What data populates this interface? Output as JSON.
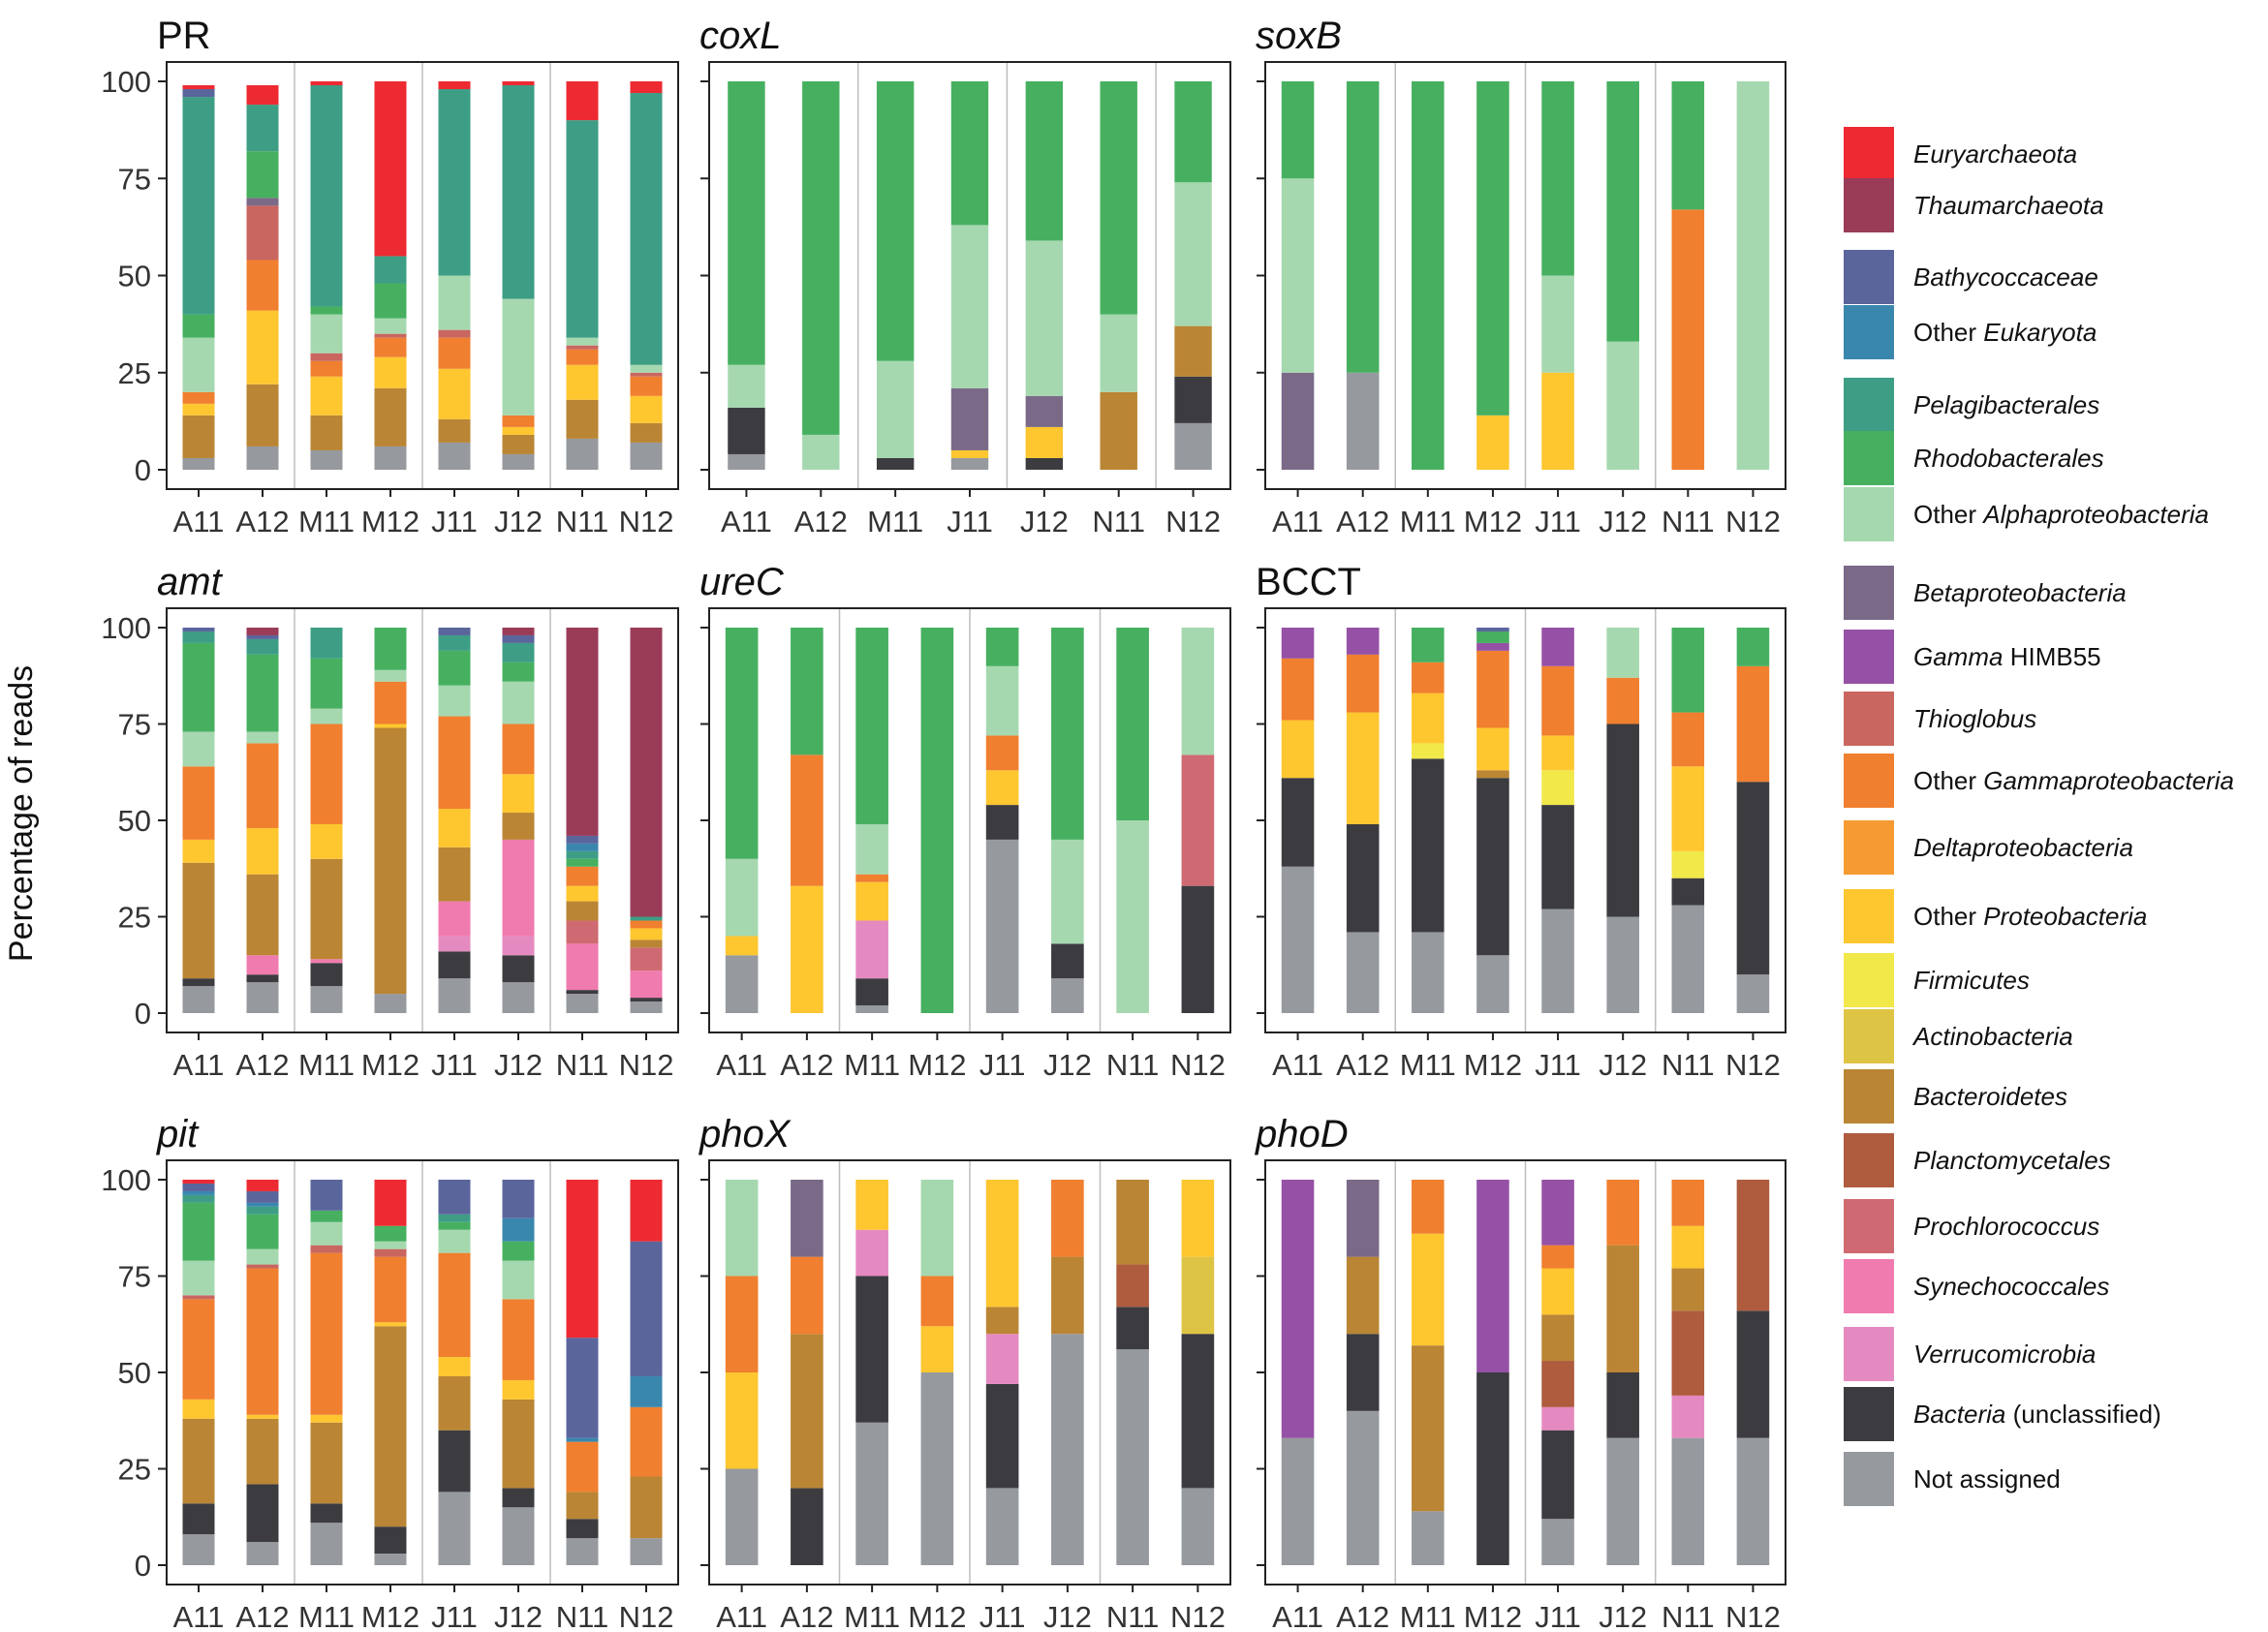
{
  "figure": {
    "ylabel": "Percentage of reads"
  },
  "legend": [
    {
      "key": "eury",
      "label": "Euryarchaeota",
      "italic": true,
      "color": "#ED2A32"
    },
    {
      "key": "thaum",
      "label": "Thaumarchaeota",
      "italic": true,
      "color": "#9A3B58"
    },
    {
      "key": "bathy",
      "label": "Bathycoccaceae",
      "italic": true,
      "color": "#5A659C"
    },
    {
      "key": "oeuk",
      "prefix": "Other ",
      "label": "Eukaryota",
      "italic": true,
      "color": "#3A87AE"
    },
    {
      "key": "pelag",
      "label": "Pelagibacterales",
      "italic": true,
      "color": "#3E9E85"
    },
    {
      "key": "rhodo",
      "label": "Rhodobacterales",
      "italic": true,
      "color": "#46B060"
    },
    {
      "key": "oalpha",
      "prefix": "Other ",
      "label": "Alphaproteobacteria",
      "italic": true,
      "color": "#A6D8B0"
    },
    {
      "key": "beta",
      "label": "Betaproteobacteria",
      "italic": true,
      "color": "#7A6A88"
    },
    {
      "key": "gamma",
      "label": "Gamma",
      "suffix": " HIMB55",
      "italic": true,
      "color": "#9551A5"
    },
    {
      "key": "thio",
      "label": "Thioglobus",
      "italic": true,
      "color": "#C8665F"
    },
    {
      "key": "ogamma",
      "prefix": "Other ",
      "label": "Gammaproteobacteria",
      "italic": true,
      "color": "#F07F2F"
    },
    {
      "key": "delta",
      "label": "Deltaproteobacteria",
      "italic": true,
      "color": "#F69A32"
    },
    {
      "key": "oproteo",
      "prefix": "Other ",
      "label": "Proteobacteria",
      "italic": true,
      "color": "#FEC62F"
    },
    {
      "key": "firm",
      "label": "Firmicutes",
      "italic": true,
      "color": "#F1E84A"
    },
    {
      "key": "actino",
      "label": "Actinobacteria",
      "italic": true,
      "color": "#DEC444"
    },
    {
      "key": "bacter",
      "label": "Bacteroidetes",
      "italic": true,
      "color": "#BA8534"
    },
    {
      "key": "planc",
      "label": "Planctomycetales",
      "italic": true,
      "color": "#AE5B3E"
    },
    {
      "key": "prochl",
      "label": "Prochlorococcus",
      "italic": true,
      "color": "#CF6A72"
    },
    {
      "key": "synech",
      "label": "Synechococcales",
      "italic": true,
      "color": "#F07BAE"
    },
    {
      "key": "verru",
      "label": "Verrucomicrobia",
      "italic": true,
      "color": "#E58AC0"
    },
    {
      "key": "unclass",
      "label": "Bacteria",
      "suffix": " (unclassified)",
      "italic": true,
      "color": "#3C3C40"
    },
    {
      "key": "na",
      "label": "Not assigned",
      "italic": false,
      "color": "#96999E"
    }
  ],
  "chart_data": [
    {
      "type": "bar",
      "stacked": true,
      "title": "PR",
      "title_italic": false,
      "ylim": [
        0,
        100
      ],
      "yticks": [
        0,
        25,
        50,
        75,
        100
      ],
      "categories": [
        "A11",
        "A12",
        "M11",
        "M12",
        "J11",
        "J12",
        "N11",
        "N12"
      ],
      "bars": [
        {
          "na": 3,
          "bacter": 11,
          "oproteo": 3,
          "ogamma": 3,
          "bathy": 2,
          "oalpha": 14,
          "rhodo": 6,
          "pelag": 56,
          "eury": 1
        },
        {
          "na": 6,
          "bacter": 16,
          "oproteo": 19,
          "ogamma": 13,
          "thio": 14,
          "beta": 2,
          "rhodo": 12,
          "pelag": 12,
          "eury": 5
        },
        {
          "na": 5,
          "bacter": 9,
          "oproteo": 10,
          "ogamma": 4,
          "thio": 2,
          "oalpha": 10,
          "rhodo": 2,
          "pelag": 57,
          "eury": 1
        },
        {
          "na": 6,
          "bacter": 15,
          "oproteo": 8,
          "ogamma": 5,
          "thio": 1,
          "oalpha": 4,
          "rhodo": 9,
          "pelag": 7,
          "eury": 45
        },
        {
          "na": 7,
          "bacter": 6,
          "oproteo": 13,
          "ogamma": 8,
          "thio": 2,
          "oalpha": 14,
          "pelag": 48,
          "eury": 2
        },
        {
          "na": 4,
          "bacter": 5,
          "oproteo": 2,
          "ogamma": 3,
          "oalpha": 30,
          "pelag": 55,
          "eury": 1
        },
        {
          "na": 8,
          "bacter": 10,
          "oproteo": 9,
          "ogamma": 4,
          "thio": 1,
          "oalpha": 2,
          "pelag": 56,
          "eury": 10
        },
        {
          "na": 7,
          "bacter": 5,
          "oproteo": 7,
          "ogamma": 5,
          "thio": 1,
          "oalpha": 2,
          "pelag": 70,
          "eury": 3
        }
      ]
    },
    {
      "type": "bar",
      "stacked": true,
      "title": "coxL",
      "title_italic": true,
      "ylim": [
        0,
        100
      ],
      "yticks": [
        0,
        25,
        50,
        75,
        100
      ],
      "categories": [
        "A11",
        "A12",
        "M11",
        "J11",
        "J12",
        "N11",
        "N12"
      ],
      "bars": [
        {
          "na": 4,
          "unclass": 12,
          "oalpha": 11,
          "rhodo": 73
        },
        {
          "oalpha": 9,
          "rhodo": 91
        },
        {
          "unclass": 3,
          "oalpha": 25,
          "rhodo": 72
        },
        {
          "na": 3,
          "oproteo": 2,
          "beta": 16,
          "oalpha": 42,
          "rhodo": 37
        },
        {
          "unclass": 3,
          "oproteo": 8,
          "beta": 8,
          "oalpha": 40,
          "rhodo": 41
        },
        {
          "bacter": 20,
          "oalpha": 20,
          "rhodo": 60
        },
        {
          "na": 12,
          "unclass": 12,
          "bacter": 13,
          "oalpha": 37,
          "rhodo": 26
        }
      ]
    },
    {
      "type": "bar",
      "stacked": true,
      "title": "soxB",
      "title_italic": true,
      "ylim": [
        0,
        100
      ],
      "yticks": [
        0,
        25,
        50,
        75,
        100
      ],
      "categories": [
        "A11",
        "A12",
        "M11",
        "M12",
        "J11",
        "J12",
        "N11",
        "N12"
      ],
      "bars": [
        {
          "beta": 25,
          "oalpha": 50,
          "rhodo": 25
        },
        {
          "na": 25,
          "rhodo": 75
        },
        {
          "rhodo": 100
        },
        {
          "oproteo": 14,
          "rhodo": 86
        },
        {
          "oproteo": 25,
          "oalpha": 25,
          "rhodo": 50
        },
        {
          "oalpha": 33,
          "rhodo": 67
        },
        {
          "ogamma": 67,
          "rhodo": 33
        },
        {
          "oalpha": 100
        }
      ]
    },
    {
      "type": "bar",
      "stacked": true,
      "title": "amt",
      "title_italic": true,
      "ylim": [
        0,
        100
      ],
      "yticks": [
        0,
        25,
        50,
        75,
        100
      ],
      "categories": [
        "A11",
        "A12",
        "M11",
        "M12",
        "J11",
        "J12",
        "N11",
        "N12"
      ],
      "bars": [
        {
          "na": 7,
          "unclass": 2,
          "bacter": 30,
          "oproteo": 6,
          "ogamma": 19,
          "oalpha": 9,
          "rhodo": 23,
          "pelag": 3,
          "bathy": 1
        },
        {
          "na": 8,
          "unclass": 2,
          "synech": 5,
          "bacter": 21,
          "oproteo": 12,
          "ogamma": 22,
          "oalpha": 3,
          "rhodo": 20,
          "pelag": 4,
          "bathy": 1,
          "thaum": 2
        },
        {
          "na": 7,
          "unclass": 6,
          "synech": 1,
          "bacter": 26,
          "oproteo": 9,
          "ogamma": 26,
          "oalpha": 4,
          "rhodo": 13,
          "pelag": 8
        },
        {
          "na": 5,
          "bacter": 69,
          "oproteo": 1,
          "ogamma": 11,
          "oalpha": 3,
          "rhodo": 11
        },
        {
          "na": 9,
          "unclass": 7,
          "verru": 4,
          "synech": 9,
          "bacter": 14,
          "oproteo": 10,
          "ogamma": 24,
          "oalpha": 8,
          "rhodo": 9,
          "pelag": 4,
          "bathy": 2
        },
        {
          "na": 8,
          "unclass": 7,
          "verru": 5,
          "synech": 25,
          "bacter": 7,
          "oproteo": 10,
          "ogamma": 13,
          "oalpha": 11,
          "rhodo": 5,
          "pelag": 5,
          "bathy": 2,
          "thaum": 2
        },
        {
          "na": 5,
          "unclass": 1,
          "synech": 12,
          "prochl": 6,
          "bacter": 5,
          "oproteo": 4,
          "ogamma": 5,
          "rhodo": 2,
          "pelag": 2,
          "oeuk": 2,
          "bathy": 2,
          "thaum": 54
        },
        {
          "na": 3,
          "unclass": 1,
          "synech": 7,
          "prochl": 6,
          "bacter": 2,
          "oproteo": 3,
          "ogamma": 2,
          "pelag": 1,
          "thaum": 75
        }
      ]
    },
    {
      "type": "bar",
      "stacked": true,
      "title": "ureC",
      "title_italic": true,
      "ylim": [
        0,
        100
      ],
      "yticks": [
        0,
        25,
        50,
        75,
        100
      ],
      "categories": [
        "A11",
        "A12",
        "M11",
        "M12",
        "J11",
        "J12",
        "N11",
        "N12"
      ],
      "bars": [
        {
          "na": 15,
          "oproteo": 5,
          "oalpha": 20,
          "rhodo": 60
        },
        {
          "oproteo": 33,
          "ogamma": 34,
          "rhodo": 33
        },
        {
          "na": 2,
          "unclass": 7,
          "verru": 15,
          "oproteo": 10,
          "ogamma": 2,
          "oalpha": 13,
          "rhodo": 51
        },
        {
          "rhodo": 100
        },
        {
          "na": 45,
          "unclass": 9,
          "oproteo": 9,
          "ogamma": 9,
          "oalpha": 18,
          "rhodo": 10
        },
        {
          "na": 9,
          "unclass": 9,
          "oalpha": 27,
          "rhodo": 55
        },
        {
          "oalpha": 50,
          "rhodo": 50
        },
        {
          "unclass": 33,
          "prochl": 34,
          "oalpha": 33
        }
      ]
    },
    {
      "type": "bar",
      "stacked": true,
      "title": "BCCT",
      "title_italic": false,
      "ylim": [
        0,
        100
      ],
      "yticks": [
        0,
        25,
        50,
        75,
        100
      ],
      "categories": [
        "A11",
        "A12",
        "M11",
        "M12",
        "J11",
        "J12",
        "N11",
        "N12"
      ],
      "bars": [
        {
          "na": 38,
          "unclass": 23,
          "oproteo": 15,
          "ogamma": 16,
          "gamma": 8
        },
        {
          "na": 21,
          "unclass": 28,
          "oproteo": 29,
          "ogamma": 15,
          "gamma": 7
        },
        {
          "na": 21,
          "unclass": 45,
          "firm": 4,
          "oproteo": 13,
          "ogamma": 8,
          "rhodo": 9
        },
        {
          "na": 15,
          "unclass": 46,
          "bacter": 2,
          "oproteo": 11,
          "ogamma": 20,
          "rhodo": 3,
          "gamma": 2,
          "bathy": 1
        },
        {
          "na": 27,
          "unclass": 27,
          "firm": 9,
          "oproteo": 9,
          "ogamma": 18,
          "gamma": 10
        },
        {
          "na": 25,
          "unclass": 50,
          "ogamma": 12,
          "oalpha": 13
        },
        {
          "na": 28,
          "unclass": 7,
          "firm": 7,
          "oproteo": 22,
          "ogamma": 14,
          "rhodo": 22
        },
        {
          "na": 10,
          "unclass": 50,
          "ogamma": 30,
          "rhodo": 10
        }
      ]
    },
    {
      "type": "bar",
      "stacked": true,
      "title": "pit",
      "title_italic": true,
      "ylim": [
        0,
        100
      ],
      "yticks": [
        0,
        25,
        50,
        75,
        100
      ],
      "categories": [
        "A11",
        "A12",
        "M11",
        "M12",
        "J11",
        "J12",
        "N11",
        "N12"
      ],
      "bars": [
        {
          "na": 8,
          "unclass": 8,
          "bacter": 22,
          "oproteo": 5,
          "ogamma": 26,
          "thio": 1,
          "oalpha": 9,
          "rhodo": 15,
          "pelag": 2,
          "oeuk": 1,
          "bathy": 2,
          "eury": 1
        },
        {
          "na": 6,
          "unclass": 15,
          "bacter": 17,
          "oproteo": 1,
          "ogamma": 38,
          "thio": 1,
          "oalpha": 4,
          "rhodo": 9,
          "pelag": 2,
          "oeuk": 1,
          "bathy": 3,
          "eury": 3
        },
        {
          "na": 11,
          "unclass": 5,
          "bacter": 21,
          "oproteo": 2,
          "ogamma": 42,
          "thio": 2,
          "oalpha": 6,
          "rhodo": 3,
          "bathy": 8
        },
        {
          "na": 3,
          "unclass": 7,
          "bacter": 52,
          "oproteo": 1,
          "ogamma": 17,
          "oalpha": 2,
          "rhodo": 4,
          "thio": 2,
          "eury": 12
        },
        {
          "na": 19,
          "unclass": 16,
          "bacter": 14,
          "oproteo": 5,
          "ogamma": 27,
          "oalpha": 6,
          "rhodo": 2,
          "pelag": 2,
          "bathy": 9
        },
        {
          "na": 15,
          "unclass": 5,
          "bacter": 23,
          "oproteo": 5,
          "ogamma": 21,
          "oalpha": 10,
          "rhodo": 5,
          "oeuk": 6,
          "bathy": 10
        },
        {
          "na": 7,
          "unclass": 5,
          "bacter": 7,
          "ogamma": 13,
          "oeuk": 1,
          "bathy": 26,
          "eury": 41
        },
        {
          "na": 7,
          "bacter": 16,
          "ogamma": 18,
          "oeuk": 8,
          "bathy": 35,
          "eury": 16
        }
      ]
    },
    {
      "type": "bar",
      "stacked": true,
      "title": "phoX",
      "title_italic": true,
      "ylim": [
        0,
        100
      ],
      "yticks": [
        0,
        25,
        50,
        75,
        100
      ],
      "categories": [
        "A11",
        "A12",
        "M11",
        "M12",
        "J11",
        "J12",
        "N11",
        "N12"
      ],
      "bars": [
        {
          "na": 25,
          "oproteo": 25,
          "ogamma": 25,
          "oalpha": 25
        },
        {
          "unclass": 20,
          "bacter": 40,
          "ogamma": 20,
          "beta": 20
        },
        {
          "na": 37,
          "unclass": 38,
          "verru": 12,
          "oproteo": 13
        },
        {
          "na": 50,
          "oproteo": 12,
          "ogamma": 13,
          "oalpha": 25
        },
        {
          "na": 20,
          "unclass": 27,
          "verru": 13,
          "bacter": 7,
          "oproteo": 33
        },
        {
          "na": 60,
          "bacter": 20,
          "ogamma": 20
        },
        {
          "na": 56,
          "unclass": 11,
          "planc": 11,
          "bacter": 22
        },
        {
          "na": 20,
          "unclass": 40,
          "actino": 20,
          "oproteo": 20
        }
      ]
    },
    {
      "type": "bar",
      "stacked": true,
      "title": "phoD",
      "title_italic": true,
      "ylim": [
        0,
        100
      ],
      "yticks": [
        0,
        25,
        50,
        75,
        100
      ],
      "categories": [
        "A11",
        "A12",
        "M11",
        "M12",
        "J11",
        "J12",
        "N11",
        "N12"
      ],
      "bars": [
        {
          "na": 33,
          "gamma": 67
        },
        {
          "na": 40,
          "unclass": 20,
          "bacter": 20,
          "beta": 20
        },
        {
          "na": 14,
          "bacter": 43,
          "oproteo": 29,
          "ogamma": 14
        },
        {
          "unclass": 50,
          "gamma": 50
        },
        {
          "na": 12,
          "unclass": 23,
          "verru": 6,
          "planc": 12,
          "bacter": 12,
          "oproteo": 12,
          "ogamma": 6,
          "gamma": 17
        },
        {
          "na": 33,
          "unclass": 17,
          "bacter": 33,
          "ogamma": 17
        },
        {
          "na": 33,
          "verru": 11,
          "planc": 22,
          "bacter": 11,
          "oproteo": 11,
          "ogamma": 12
        },
        {
          "na": 33,
          "unclass": 33,
          "planc": 34
        }
      ]
    }
  ]
}
